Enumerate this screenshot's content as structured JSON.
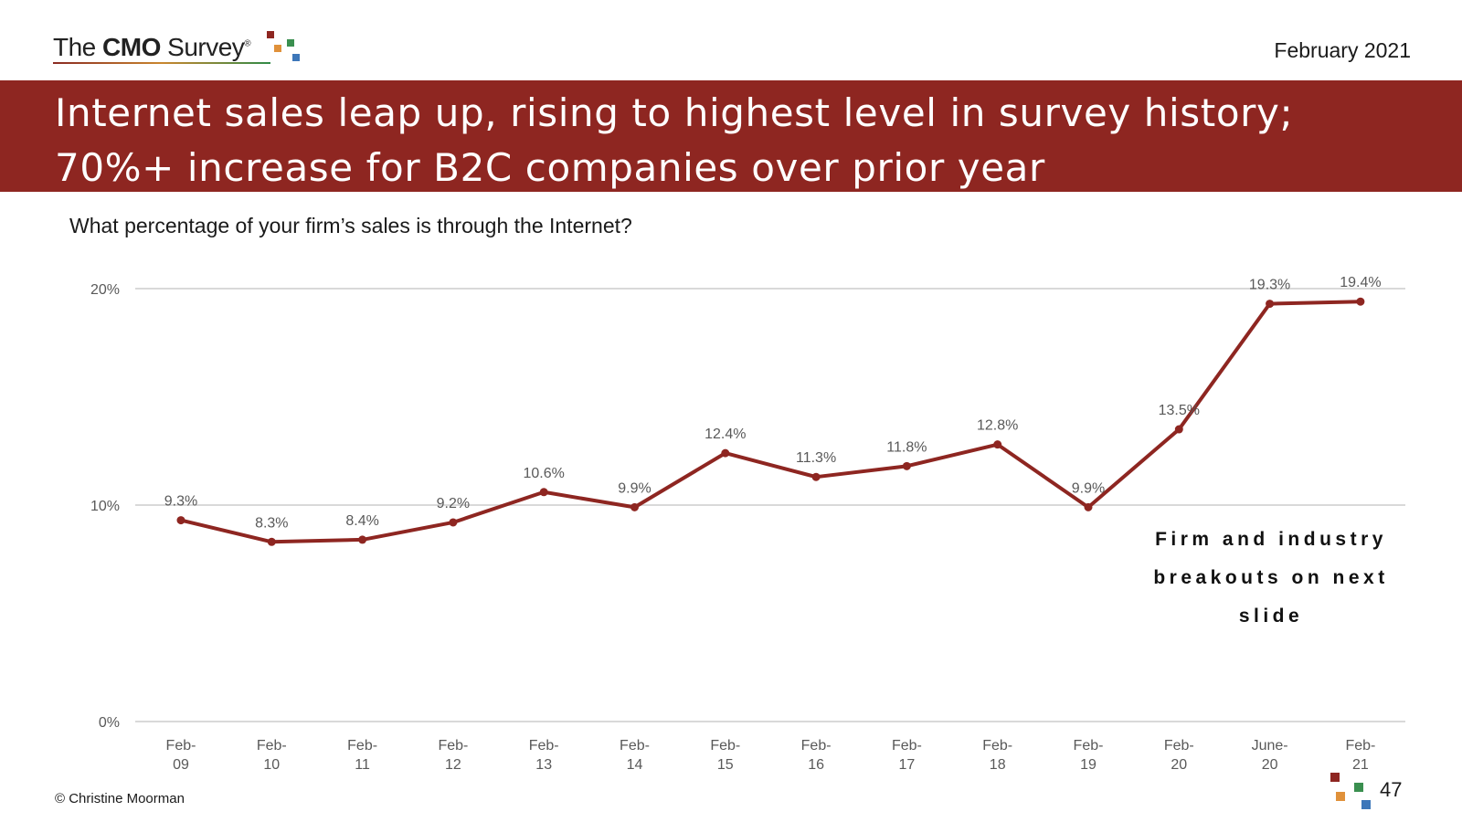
{
  "header": {
    "logo_text_pre": "The",
    "logo_text_bold": "CMO",
    "logo_text_post": "Survey",
    "logo_reg": "®",
    "date": "February 2021"
  },
  "banner": {
    "line1": "Internet sales leap up, rising to highest level in survey history;",
    "line2": "70%+ increase for B2C companies over prior year"
  },
  "question": "What percentage of your firm’s sales is through the Internet?",
  "annotation": "Firm and industry breakouts on next slide",
  "footer": {
    "copyright": "© Christine Moorman",
    "page_number": "47"
  },
  "colors": {
    "accent": "#8e2621",
    "line": "#8e2621",
    "grid": "#d9d9d9",
    "logo_red": "#8e2621",
    "logo_orange": "#e0913a",
    "logo_green": "#3a8f4f",
    "logo_blue": "#3d77b9"
  },
  "chart_data": {
    "type": "line",
    "categories": [
      [
        "Feb-",
        "09"
      ],
      [
        "Feb-",
        "10"
      ],
      [
        "Feb-",
        "11"
      ],
      [
        "Feb-",
        "12"
      ],
      [
        "Feb-",
        "13"
      ],
      [
        "Feb-",
        "14"
      ],
      [
        "Feb-",
        "15"
      ],
      [
        "Feb-",
        "16"
      ],
      [
        "Feb-",
        "17"
      ],
      [
        "Feb-",
        "18"
      ],
      [
        "Feb-",
        "19"
      ],
      [
        "Feb-",
        "20"
      ],
      [
        "June-",
        "20"
      ],
      [
        "Feb-",
        "21"
      ]
    ],
    "values": [
      9.3,
      8.3,
      8.4,
      9.2,
      10.6,
      9.9,
      12.4,
      11.3,
      11.8,
      12.8,
      9.9,
      13.5,
      19.3,
      19.4
    ],
    "data_labels": [
      "9.3%",
      "8.3%",
      "8.4%",
      "9.2%",
      "10.6%",
      "9.9%",
      "12.4%",
      "11.3%",
      "11.8%",
      "12.8%",
      "9.9%",
      "13.5%",
      "19.3%",
      "19.4%"
    ],
    "ylim": [
      0,
      20
    ],
    "yticks": [
      0,
      10,
      20
    ],
    "ytick_labels": [
      "0%",
      "10%",
      "20%"
    ],
    "grid": true,
    "xlabel": "",
    "ylabel": ""
  }
}
